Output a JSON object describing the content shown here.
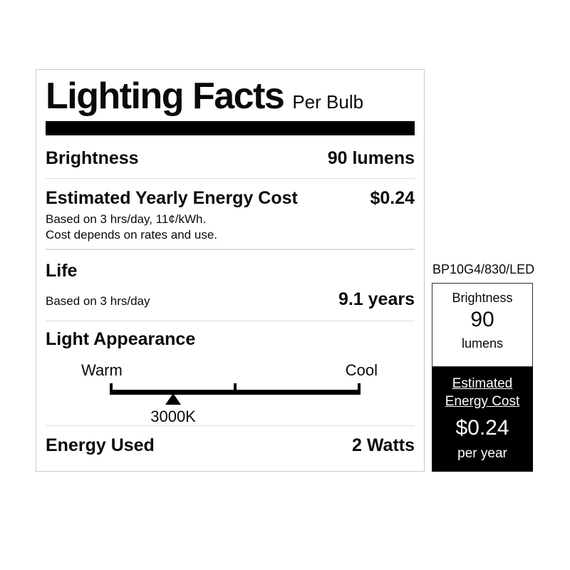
{
  "main_label": {
    "title": "Lighting Facts",
    "subtitle": "Per Bulb",
    "brightness": {
      "label": "Brightness",
      "value": "90 lumens"
    },
    "energy_cost": {
      "label": "Estimated Yearly Energy Cost",
      "value": "$0.24",
      "note_line1": "Based on 3 hrs/day, 11¢/kWh.",
      "note_line2": "Cost depends on rates and use."
    },
    "life": {
      "label": "Life",
      "basis": "Based on 3 hrs/day",
      "value": "9.1 years"
    },
    "light_appearance": {
      "label": "Light Appearance",
      "warm_label": "Warm",
      "cool_label": "Cool",
      "kelvin": "3000K",
      "marker_position_percent": 25.3
    },
    "energy_used": {
      "label": "Energy Used",
      "value": "2 Watts"
    }
  },
  "side_panel": {
    "model": "BP10G4/830/LED",
    "brightness_box": {
      "label": "Brightness",
      "value": "90",
      "unit": "lumens"
    },
    "energy_box": {
      "label_line1": "Estimated",
      "label_line2": "Energy Cost",
      "value": "$0.24",
      "unit": "per year"
    }
  },
  "colors": {
    "text": "#0a0a0a",
    "title_bar": "#000000",
    "divider": "#dcdcdc",
    "label_border": "#c9c9c9",
    "black_box_bg": "#000000",
    "black_box_text": "#ffffff"
  }
}
